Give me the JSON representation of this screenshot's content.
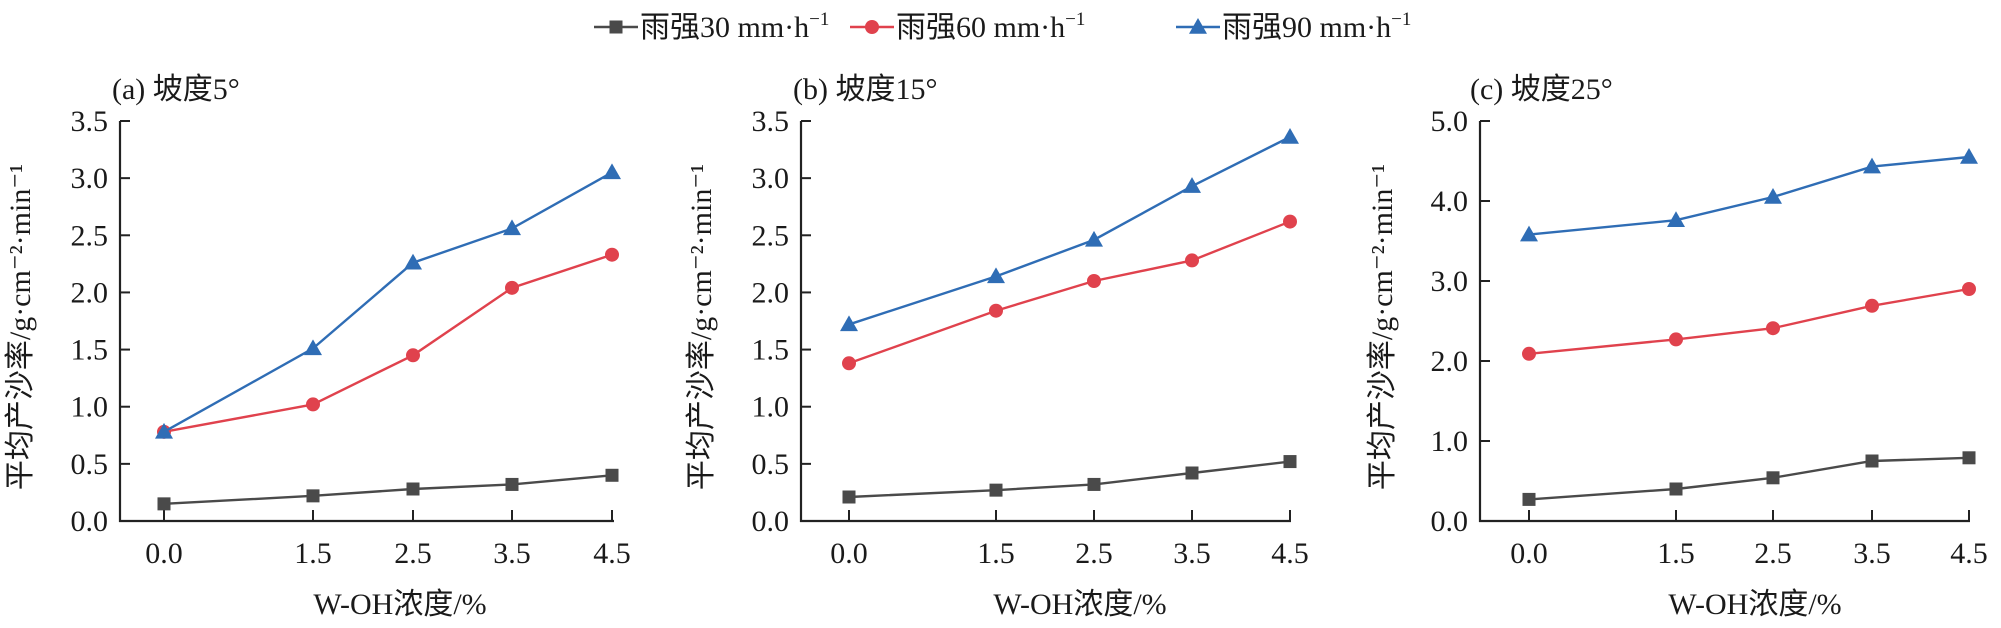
{
  "legend": {
    "position": "top-center",
    "items": [
      {
        "label": "雨强30 mm·h",
        "sup": "−1",
        "color": "#4a4a4a",
        "marker": "square"
      },
      {
        "label": "雨强60 mm·h",
        "sup": "−1",
        "color": "#e0424d",
        "marker": "circle"
      },
      {
        "label": "雨强90 mm·h",
        "sup": "−1",
        "color": "#2f6db5",
        "marker": "triangle"
      }
    ]
  },
  "chart_data": [
    {
      "type": "line",
      "title": "(a) 坡度5°",
      "xlabel": "W-OH浓度/%",
      "ylabel": "平均产沙率/g·cm⁻²·min⁻¹",
      "x": [
        0.0,
        1.5,
        2.5,
        3.5,
        4.5
      ],
      "x_tick_labels": [
        "0.0",
        "1.5",
        "2.5",
        "3.5",
        "4.5"
      ],
      "ylim": [
        0,
        3.5
      ],
      "y_ticks": [
        0.0,
        0.5,
        1.0,
        1.5,
        2.0,
        2.5,
        3.0,
        3.5
      ],
      "y_tick_labels": [
        "0.0",
        "0.5",
        "1.0",
        "1.5",
        "2.0",
        "2.5",
        "3.0",
        "3.5"
      ],
      "grid": false,
      "series": [
        {
          "name": "雨强30 mm·h⁻¹",
          "values": [
            0.15,
            0.22,
            0.28,
            0.32,
            0.4
          ]
        },
        {
          "name": "雨强60 mm·h⁻¹",
          "values": [
            0.78,
            1.02,
            1.45,
            2.04,
            2.33
          ]
        },
        {
          "name": "雨强90 mm·h⁻¹",
          "values": [
            0.78,
            1.51,
            2.26,
            2.56,
            3.05
          ]
        }
      ]
    },
    {
      "type": "line",
      "title": "(b) 坡度15°",
      "xlabel": "W-OH浓度/%",
      "ylabel": "平均产沙率/g·cm⁻²·min⁻¹",
      "x": [
        0.0,
        1.5,
        2.5,
        3.5,
        4.5
      ],
      "x_tick_labels": [
        "0.0",
        "1.5",
        "2.5",
        "3.5",
        "4.5"
      ],
      "ylim": [
        0,
        3.5
      ],
      "y_ticks": [
        0.0,
        0.5,
        1.0,
        1.5,
        2.0,
        2.5,
        3.0,
        3.5
      ],
      "y_tick_labels": [
        "0.0",
        "0.5",
        "1.0",
        "1.5",
        "2.0",
        "2.5",
        "3.0",
        "3.5"
      ],
      "grid": false,
      "series": [
        {
          "name": "雨强30 mm·h⁻¹",
          "values": [
            0.21,
            0.27,
            0.32,
            0.42,
            0.52
          ]
        },
        {
          "name": "雨强60 mm·h⁻¹",
          "values": [
            1.38,
            1.84,
            2.1,
            2.28,
            2.62
          ]
        },
        {
          "name": "雨强90 mm·h⁻¹",
          "values": [
            1.72,
            2.14,
            2.46,
            2.93,
            3.36
          ]
        }
      ]
    },
    {
      "type": "line",
      "title": "(c) 坡度25°",
      "xlabel": "W-OH浓度/%",
      "ylabel": "平均产沙率/g·cm⁻²·min⁻¹",
      "x": [
        0.0,
        1.5,
        2.5,
        3.5,
        4.5
      ],
      "x_tick_labels": [
        "0.0",
        "1.5",
        "2.5",
        "3.5",
        "4.5"
      ],
      "ylim": [
        0,
        5.0
      ],
      "y_ticks": [
        0.0,
        1.0,
        2.0,
        3.0,
        4.0,
        5.0
      ],
      "y_tick_labels": [
        "0.0",
        "1.0",
        "2.0",
        "3.0",
        "4.0",
        "5.0"
      ],
      "grid": false,
      "series": [
        {
          "name": "雨强30 mm·h⁻¹",
          "values": [
            0.27,
            0.4,
            0.54,
            0.75,
            0.79
          ]
        },
        {
          "name": "雨强60 mm·h⁻¹",
          "values": [
            2.09,
            2.27,
            2.41,
            2.69,
            2.9
          ]
        },
        {
          "name": "雨强90 mm·h⁻¹",
          "values": [
            3.58,
            3.76,
            4.05,
            4.43,
            4.55
          ]
        }
      ]
    }
  ]
}
